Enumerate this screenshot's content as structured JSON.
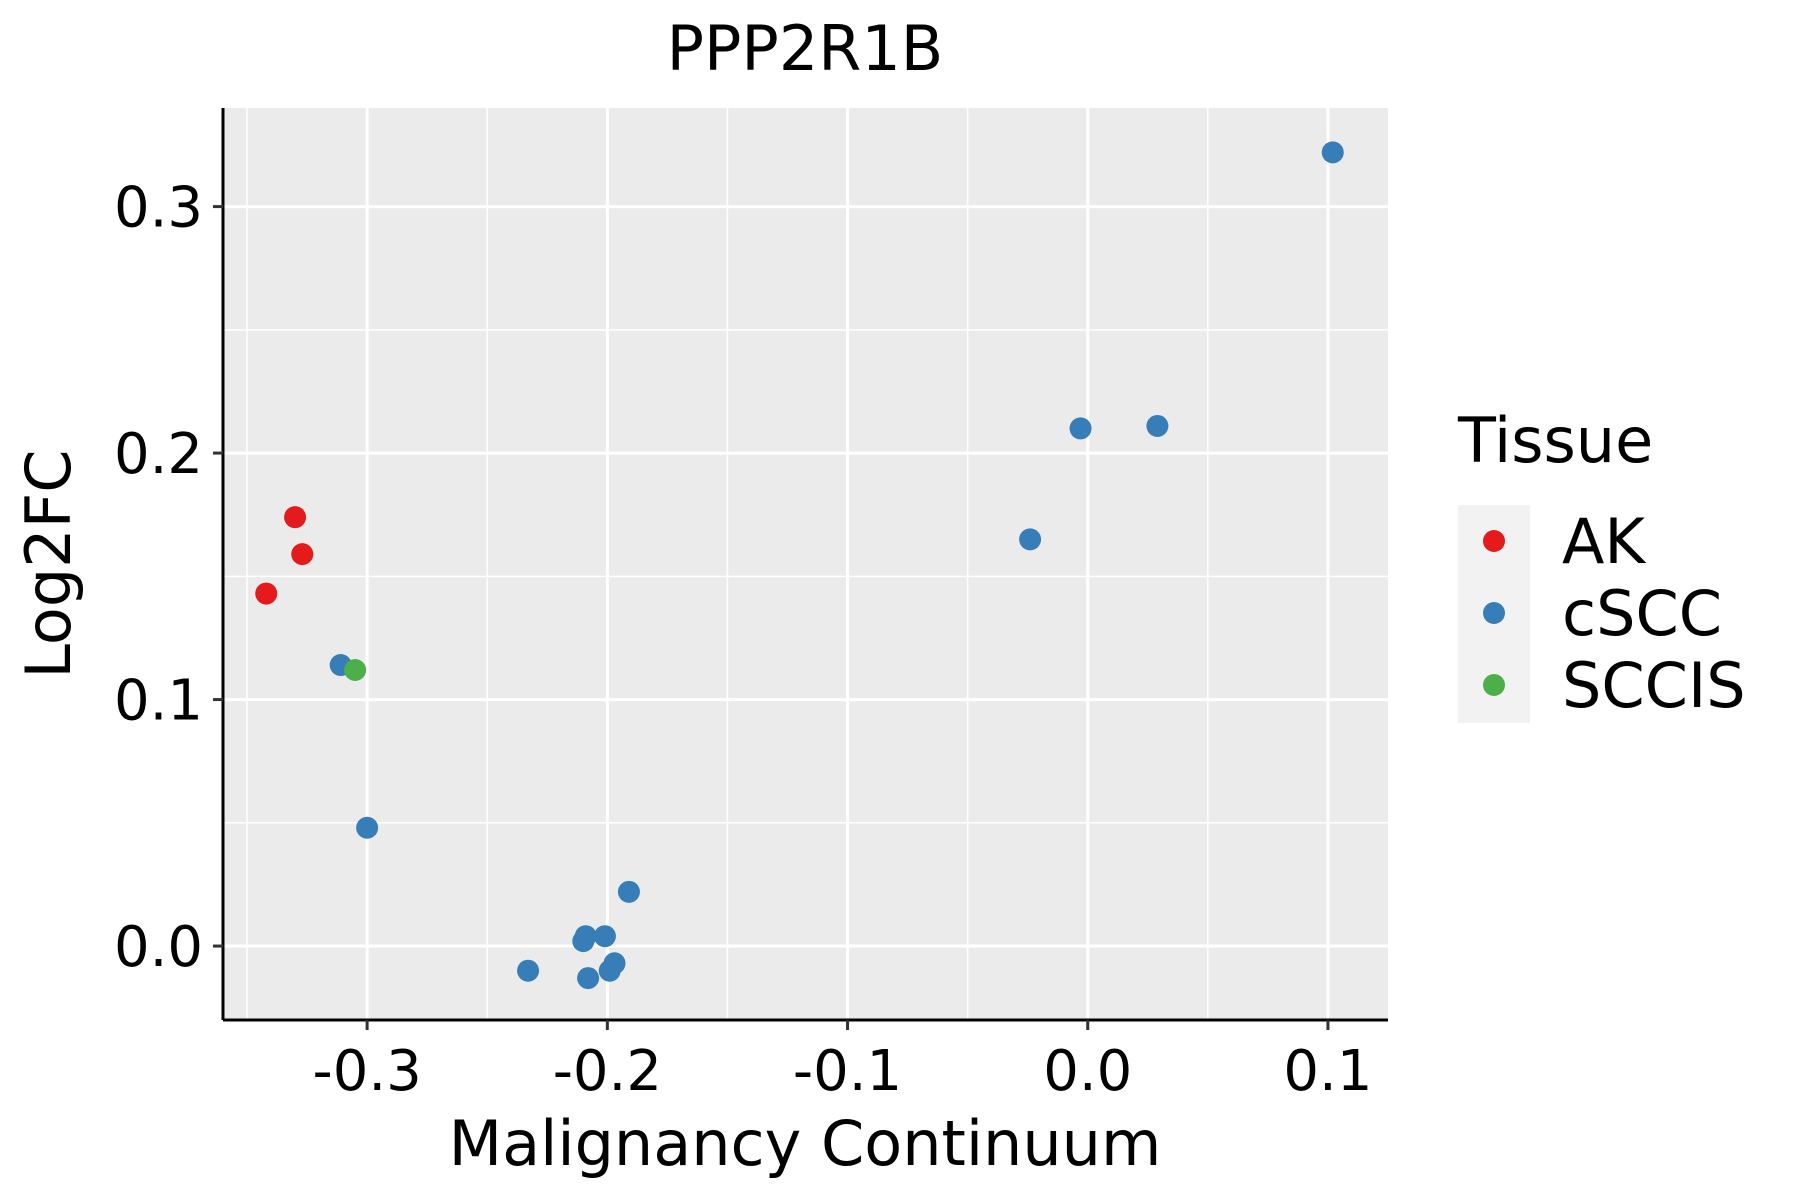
{
  "chart_data": {
    "type": "scatter",
    "title": "PPP2R1B",
    "xlabel": "Malignancy Continuum",
    "ylabel": "Log2FC",
    "xlim": [
      -0.36,
      0.125
    ],
    "ylim": [
      -0.03,
      0.34
    ],
    "x_ticks": [
      -0.3,
      -0.2,
      -0.1,
      0.0,
      0.1
    ],
    "x_tick_labels": [
      "-0.3",
      "-0.2",
      "-0.1",
      "0.0",
      "0.1"
    ],
    "y_ticks": [
      0.0,
      0.1,
      0.2,
      0.3
    ],
    "y_tick_labels": [
      "0.0",
      "0.1",
      "0.2",
      "0.3"
    ],
    "grid": true,
    "legend": {
      "title": "Tissue",
      "position": "right",
      "entries": [
        {
          "name": "AK",
          "color": "#e41a1c"
        },
        {
          "name": "cSCC",
          "color": "#377eb8"
        },
        {
          "name": "SCCIS",
          "color": "#4daf4a"
        }
      ]
    },
    "series": [
      {
        "name": "AK",
        "color": "#e41a1c",
        "points": [
          {
            "x": -0.342,
            "y": 0.143
          },
          {
            "x": -0.33,
            "y": 0.174
          },
          {
            "x": -0.327,
            "y": 0.159
          }
        ]
      },
      {
        "name": "cSCC",
        "color": "#377eb8",
        "points": [
          {
            "x": -0.311,
            "y": 0.114
          },
          {
            "x": -0.3,
            "y": 0.048
          },
          {
            "x": -0.233,
            "y": -0.01
          },
          {
            "x": -0.21,
            "y": 0.002
          },
          {
            "x": -0.209,
            "y": 0.004
          },
          {
            "x": -0.208,
            "y": -0.013
          },
          {
            "x": -0.201,
            "y": 0.004
          },
          {
            "x": -0.199,
            "y": -0.01
          },
          {
            "x": -0.197,
            "y": -0.007
          },
          {
            "x": -0.191,
            "y": 0.022
          },
          {
            "x": -0.024,
            "y": 0.165
          },
          {
            "x": -0.003,
            "y": 0.21
          },
          {
            "x": 0.029,
            "y": 0.211
          },
          {
            "x": 0.102,
            "y": 0.322
          }
        ]
      },
      {
        "name": "SCCIS",
        "color": "#4daf4a",
        "points": [
          {
            "x": -0.305,
            "y": 0.112
          }
        ]
      }
    ]
  }
}
